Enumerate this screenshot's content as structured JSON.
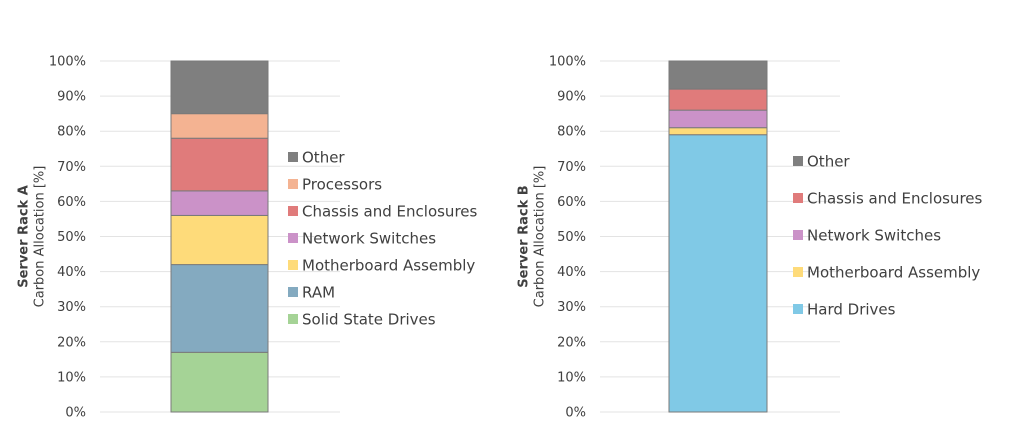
{
  "chart_data": [
    {
      "type": "bar",
      "stacked": true,
      "ylabel_title": "Server Rack A",
      "ylabel": "Carbon Allocation [%]",
      "ylim": [
        0,
        100
      ],
      "yticks": [
        "0%",
        "10%",
        "20%",
        "30%",
        "40%",
        "50%",
        "60%",
        "70%",
        "80%",
        "90%",
        "100%"
      ],
      "grid": true,
      "legend_position": "right",
      "series": [
        {
          "name": "Solid State Drives",
          "value": 17,
          "color": "#a5d396"
        },
        {
          "name": "RAM",
          "value": 25,
          "color": "#84aac0"
        },
        {
          "name": "Motherboard Assembly",
          "value": 14,
          "color": "#fedb7a"
        },
        {
          "name": "Network Switches",
          "value": 7,
          "color": "#cb92c8"
        },
        {
          "name": "Chassis and Enclosures",
          "value": 15,
          "color": "#e07b7b"
        },
        {
          "name": "Processors",
          "value": 7,
          "color": "#f4b392"
        },
        {
          "name": "Other",
          "value": 15,
          "color": "#7f7f7f"
        }
      ]
    },
    {
      "type": "bar",
      "stacked": true,
      "ylabel_title": "Server Rack B",
      "ylabel": "Carbon Allocation [%]",
      "ylim": [
        0,
        100
      ],
      "yticks": [
        "0%",
        "10%",
        "20%",
        "30%",
        "40%",
        "50%",
        "60%",
        "70%",
        "80%",
        "90%",
        "100%"
      ],
      "grid": true,
      "legend_position": "right",
      "series": [
        {
          "name": "Hard Drives",
          "value": 79,
          "color": "#80c9e6"
        },
        {
          "name": "Motherboard Assembly",
          "value": 2,
          "color": "#fedb7a"
        },
        {
          "name": "Network Switches",
          "value": 5,
          "color": "#cb92c8"
        },
        {
          "name": "Chassis and Enclosures",
          "value": 6,
          "color": "#e07b7b"
        },
        {
          "name": "Other",
          "value": 8,
          "color": "#7f7f7f"
        }
      ]
    }
  ]
}
